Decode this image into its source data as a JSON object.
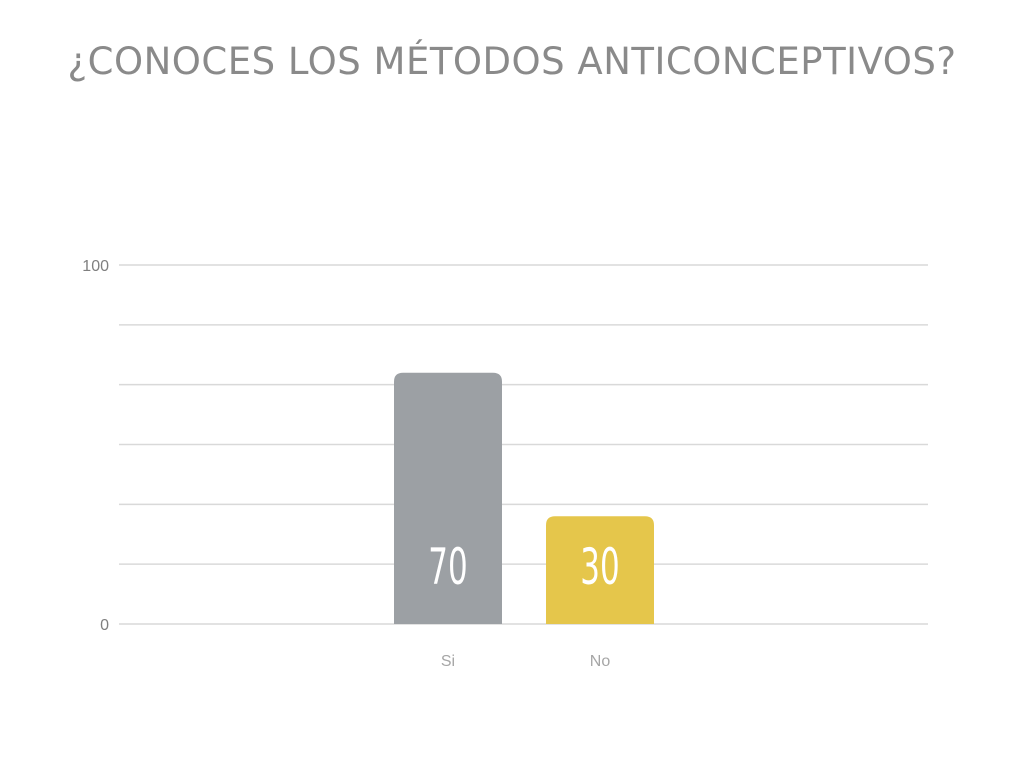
{
  "page": {
    "title": "¿CONOCES LOS MÉTODOS ANTICONCEPTIVOS?"
  },
  "chart_data": {
    "type": "bar",
    "title": "¿CONOCES LOS MÉTODOS ANTICONCEPTIVOS?",
    "categories": [
      "Si",
      "No"
    ],
    "values": [
      70,
      30
    ],
    "data_labels": [
      "70",
      "30"
    ],
    "bar_colors": [
      "#9ca0a4",
      "#e5c64b"
    ],
    "ylim": [
      0,
      100
    ],
    "y_tick_labels": [
      "0",
      "100"
    ],
    "gridlines": 6,
    "grid": true,
    "legend": "none",
    "xlabel": "",
    "ylabel": ""
  },
  "colors": {
    "title": "#8a8a8a",
    "grid": "#d9d9d9",
    "tick_text": "#7f7f7f",
    "category_text": "#a6a6a6",
    "data_label_text": "#ffffff"
  }
}
